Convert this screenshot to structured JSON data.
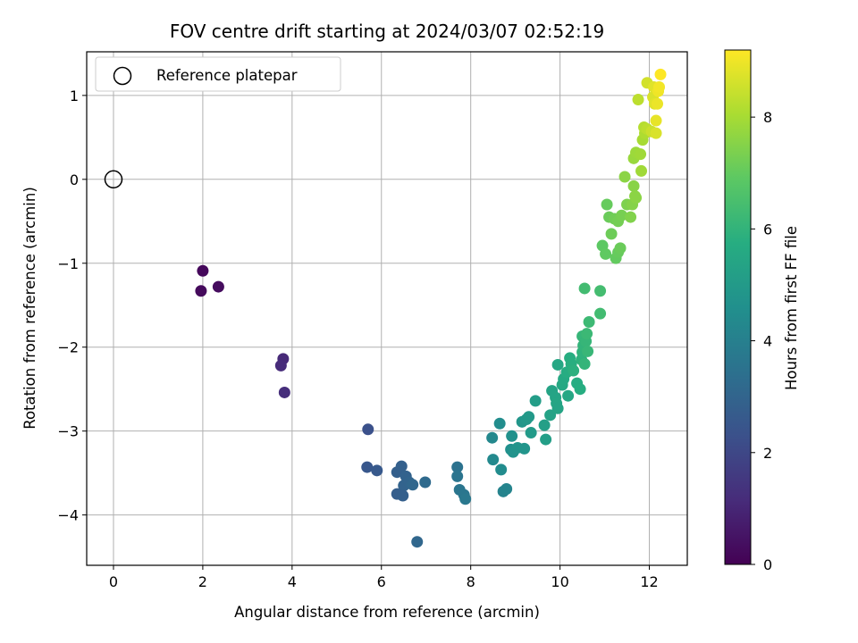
{
  "chart_data": {
    "type": "scatter",
    "title": "FOV centre drift starting at 2024/03/07 02:52:19",
    "xlabel": "Angular distance from reference (arcmin)",
    "ylabel": "Rotation from reference (arcmin)",
    "xlim": [
      -0.6,
      12.85
    ],
    "ylim": [
      -4.6,
      1.52
    ],
    "xticks": [
      0,
      2,
      4,
      6,
      8,
      10,
      12
    ],
    "yticks": [
      -4,
      -3,
      -2,
      -1,
      0,
      1
    ],
    "grid": true,
    "legend": {
      "position": "top-left",
      "entries": [
        "Reference platepar"
      ]
    },
    "reference_point": {
      "x": 0,
      "y": 0
    },
    "colorbar": {
      "label": "Hours from first FF file",
      "min": 0,
      "max": 9.2,
      "ticks": [
        0,
        2,
        4,
        6,
        8
      ],
      "colormap": "viridis"
    },
    "points": [
      [
        2.0,
        -1.09,
        0.2
      ],
      [
        1.96,
        -1.33,
        0.25
      ],
      [
        2.35,
        -1.28,
        0.3
      ],
      [
        3.8,
        -2.14,
        1.1
      ],
      [
        3.75,
        -2.22,
        1.15
      ],
      [
        3.83,
        -2.54,
        1.2
      ],
      [
        5.7,
        -2.98,
        2.3
      ],
      [
        5.68,
        -3.43,
        2.5
      ],
      [
        5.9,
        -3.47,
        2.6
      ],
      [
        6.35,
        -3.49,
        2.8
      ],
      [
        6.45,
        -3.42,
        2.85
      ],
      [
        6.55,
        -3.54,
        2.9
      ],
      [
        6.5,
        -3.65,
        2.95
      ],
      [
        6.62,
        -3.61,
        3.0
      ],
      [
        6.7,
        -3.64,
        3.1
      ],
      [
        6.35,
        -3.75,
        2.75
      ],
      [
        6.48,
        -3.77,
        2.8
      ],
      [
        6.8,
        -4.32,
        3.1
      ],
      [
        6.98,
        -3.61,
        3.2
      ],
      [
        7.7,
        -3.43,
        3.5
      ],
      [
        7.7,
        -3.54,
        3.55
      ],
      [
        7.75,
        -3.7,
        3.6
      ],
      [
        7.85,
        -3.76,
        3.65
      ],
      [
        7.88,
        -3.81,
        3.7
      ],
      [
        8.48,
        -3.08,
        4.3
      ],
      [
        8.5,
        -3.34,
        4.35
      ],
      [
        8.65,
        -2.91,
        4.5
      ],
      [
        8.68,
        -3.46,
        4.45
      ],
      [
        8.73,
        -3.72,
        4.1
      ],
      [
        8.8,
        -3.69,
        4.15
      ],
      [
        8.9,
        -3.22,
        4.6
      ],
      [
        8.92,
        -3.06,
        4.65
      ],
      [
        8.95,
        -3.25,
        4.7
      ],
      [
        9.05,
        -3.2,
        4.75
      ],
      [
        9.15,
        -2.89,
        4.85
      ],
      [
        9.2,
        -3.21,
        4.8
      ],
      [
        9.25,
        -2.86,
        4.9
      ],
      [
        9.3,
        -2.83,
        4.95
      ],
      [
        9.35,
        -3.02,
        5.0
      ],
      [
        9.45,
        -2.64,
        5.1
      ],
      [
        9.65,
        -2.93,
        5.2
      ],
      [
        9.68,
        -3.1,
        5.15
      ],
      [
        9.78,
        -2.81,
        5.3
      ],
      [
        9.82,
        -2.52,
        5.35
      ],
      [
        9.9,
        -2.6,
        5.4
      ],
      [
        9.92,
        -2.67,
        5.45
      ],
      [
        9.95,
        -2.73,
        5.4
      ],
      [
        9.95,
        -2.21,
        5.5
      ],
      [
        10.05,
        -2.45,
        5.55
      ],
      [
        10.08,
        -2.38,
        5.6
      ],
      [
        10.15,
        -2.3,
        5.7
      ],
      [
        10.18,
        -2.58,
        5.5
      ],
      [
        10.22,
        -2.13,
        5.75
      ],
      [
        10.25,
        -2.2,
        5.8
      ],
      [
        10.3,
        -2.28,
        5.85
      ],
      [
        10.38,
        -2.43,
        5.7
      ],
      [
        10.45,
        -2.5,
        5.75
      ],
      [
        10.48,
        -2.15,
        5.9
      ],
      [
        10.5,
        -2.06,
        5.95
      ],
      [
        10.52,
        -1.98,
        6.0
      ],
      [
        10.55,
        -2.2,
        6.05
      ],
      [
        10.5,
        -1.87,
        6.1
      ],
      [
        10.58,
        -1.93,
        6.1
      ],
      [
        10.62,
        -2.05,
        6.15
      ],
      [
        10.6,
        -1.84,
        6.2
      ],
      [
        10.65,
        -1.7,
        6.25
      ],
      [
        10.55,
        -1.3,
        6.35
      ],
      [
        10.9,
        -1.33,
        6.4
      ],
      [
        10.9,
        -1.6,
        6.35
      ],
      [
        10.95,
        -0.79,
        6.9
      ],
      [
        11.02,
        -0.89,
        6.95
      ],
      [
        11.05,
        -0.3,
        7.05
      ],
      [
        11.1,
        -0.45,
        7.1
      ],
      [
        11.15,
        -0.65,
        7.15
      ],
      [
        11.22,
        -0.47,
        7.2
      ],
      [
        11.25,
        -0.94,
        7.0
      ],
      [
        11.3,
        -0.87,
        7.05
      ],
      [
        11.35,
        -0.82,
        7.1
      ],
      [
        11.3,
        -0.5,
        7.25
      ],
      [
        11.38,
        -0.43,
        7.3
      ],
      [
        11.45,
        0.03,
        7.6
      ],
      [
        11.5,
        -0.3,
        7.4
      ],
      [
        11.58,
        -0.45,
        7.45
      ],
      [
        11.62,
        -0.3,
        7.5
      ],
      [
        11.65,
        -0.08,
        7.55
      ],
      [
        11.68,
        -0.2,
        7.6
      ],
      [
        11.7,
        -0.22,
        7.6
      ],
      [
        11.65,
        0.25,
        7.8
      ],
      [
        11.7,
        0.32,
        7.85
      ],
      [
        11.75,
        0.95,
        8.3
      ],
      [
        11.8,
        0.3,
        7.9
      ],
      [
        11.82,
        0.1,
        7.9
      ],
      [
        11.85,
        0.47,
        8.0
      ],
      [
        11.9,
        0.55,
        8.1
      ],
      [
        11.88,
        0.62,
        8.2
      ],
      [
        11.95,
        0.6,
        8.3
      ],
      [
        11.95,
        1.15,
        8.6
      ],
      [
        12.05,
        0.57,
        8.5
      ],
      [
        12.08,
        0.98,
        8.7
      ],
      [
        12.1,
        1.1,
        8.8
      ],
      [
        12.12,
        0.9,
        8.8
      ],
      [
        12.15,
        0.55,
        8.7
      ],
      [
        12.15,
        0.7,
        8.9
      ],
      [
        12.18,
        0.9,
        8.95
      ],
      [
        12.2,
        1.05,
        9.0
      ],
      [
        12.22,
        1.1,
        9.05
      ],
      [
        12.25,
        1.25,
        9.2
      ]
    ]
  }
}
